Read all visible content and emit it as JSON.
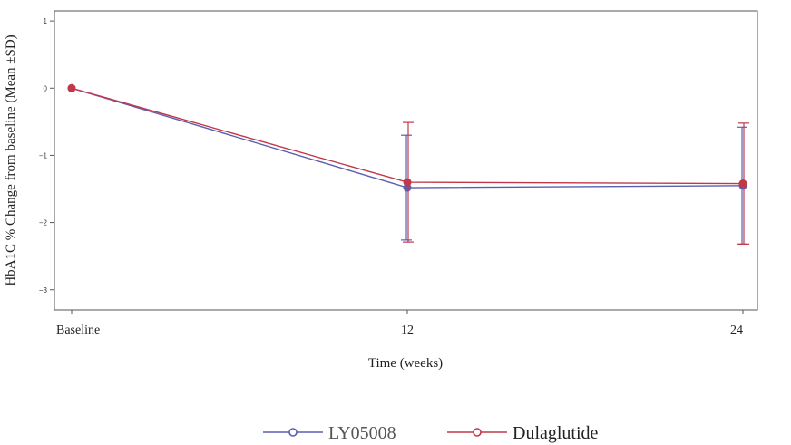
{
  "chart_data": {
    "type": "line",
    "title": "",
    "xlabel": "Time (weeks)",
    "ylabel": "HbA1C % Change from baseline (Mean ±SD)",
    "categories": [
      "Baseline",
      "12",
      "24"
    ],
    "ylim": [
      -3.3,
      1.15
    ],
    "yticks": [
      1,
      0,
      -1,
      -2,
      -3
    ],
    "grid": false,
    "legend_position": "bottom",
    "series": [
      {
        "name": "LY05008",
        "color": "#5a5fb0",
        "values": [
          0,
          -1.48,
          -1.45
        ],
        "sd": [
          0,
          0.78,
          0.87
        ]
      },
      {
        "name": "Dulaglutide",
        "color": "#c0394a",
        "values": [
          0,
          -1.4,
          -1.42
        ],
        "sd": [
          0,
          0.89,
          0.9
        ]
      }
    ]
  }
}
